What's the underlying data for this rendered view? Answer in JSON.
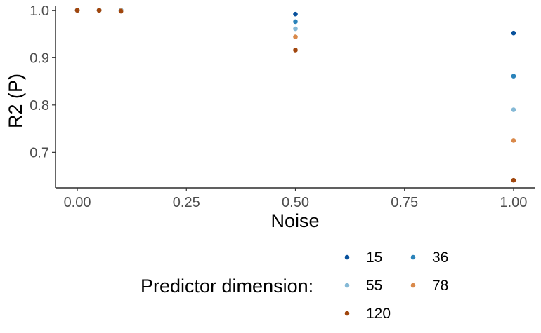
{
  "chart_data": {
    "type": "scatter",
    "xlabel": "Noise",
    "ylabel": "R2 (P)",
    "xlim": [
      -0.05,
      1.05
    ],
    "ylim": [
      0.625,
      1.01
    ],
    "xticks": [
      0,
      0.25,
      0.5,
      0.75,
      1
    ],
    "xtick_labels": [
      "0.00",
      "0.25",
      "0.50",
      "0.75",
      "1.00"
    ],
    "yticks": [
      0.7,
      0.8,
      0.9,
      1.0
    ],
    "ytick_labels": [
      "0.7",
      "0.8",
      "0.9",
      "1.0"
    ],
    "grid": false,
    "legend": {
      "title": "Predictor dimension:",
      "placement": "bottom"
    },
    "series": [
      {
        "name": "15",
        "color": "#08519c",
        "x": [
          0,
          0.05,
          0.1,
          0.5,
          1.0
        ],
        "y": [
          1.0,
          1.0,
          1.0,
          0.992,
          0.952
        ]
      },
      {
        "name": "36",
        "color": "#2b83ba",
        "x": [
          0,
          0.05,
          0.1,
          0.5,
          1.0
        ],
        "y": [
          1.0,
          1.0,
          1.0,
          0.976,
          0.861
        ]
      },
      {
        "name": "55",
        "color": "#85b9d6",
        "x": [
          0,
          0.05,
          0.1,
          0.5,
          1.0
        ],
        "y": [
          1.0,
          1.0,
          1.0,
          0.961,
          0.79
        ]
      },
      {
        "name": "78",
        "color": "#d9894a",
        "x": [
          0,
          0.05,
          0.1,
          0.5,
          1.0
        ],
        "y": [
          1.0,
          1.0,
          0.999,
          0.944,
          0.725
        ]
      },
      {
        "name": "120",
        "color": "#a0460d",
        "x": [
          0,
          0.05,
          0.1,
          0.5,
          1.0
        ],
        "y": [
          1.0,
          1.0,
          0.998,
          0.916,
          0.641
        ]
      }
    ]
  }
}
